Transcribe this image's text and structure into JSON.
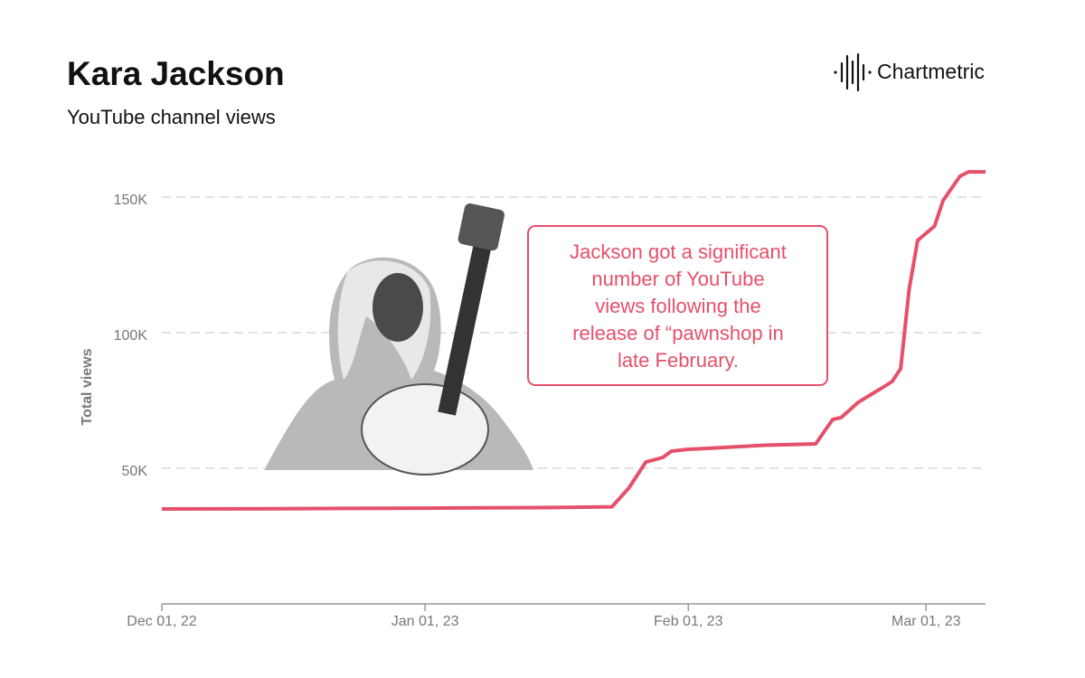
{
  "chart_data": {
    "type": "line",
    "title": "Kara Jackson",
    "subtitle": "YouTube channel views",
    "brand": "Chartmetric",
    "ylabel": "Total views",
    "annotation": [
      "Jackson got a significant",
      "number of YouTube",
      "views following the",
      "release of “pawnshop in",
      "late February."
    ],
    "x": [
      "2022-12-01",
      "2022-12-15",
      "2023-01-01",
      "2023-01-15",
      "2023-01-23",
      "2023-01-25",
      "2023-01-27",
      "2023-01-29",
      "2023-01-30",
      "2023-02-01",
      "2023-02-03",
      "2023-02-10",
      "2023-02-16",
      "2023-02-18",
      "2023-02-19",
      "2023-02-21",
      "2023-02-24",
      "2023-02-25",
      "2023-02-26",
      "2023-02-27",
      "2023-02-28",
      "2023-03-02",
      "2023-03-03",
      "2023-03-05",
      "2023-03-06",
      "2023-03-08"
    ],
    "series": [
      {
        "name": "YouTube channel views",
        "color": "#e5506a",
        "values": [
          35000,
          35100,
          35300,
          35500,
          35800,
          42700,
          52300,
          54000,
          56300,
          57000,
          57300,
          58500,
          59000,
          68000,
          68700,
          74300,
          80000,
          82000,
          86700,
          116000,
          134000,
          139300,
          148700,
          157700,
          159300,
          159300
        ]
      }
    ],
    "xlim": [
      "2022-12-01",
      "2023-03-08"
    ],
    "xticks": [
      {
        "value": "2022-12-01",
        "label": "Dec 01, 22"
      },
      {
        "value": "2023-01-01",
        "label": "Jan 01, 23"
      },
      {
        "value": "2023-02-01",
        "label": "Feb 01, 23"
      },
      {
        "value": "2023-03-01",
        "label": "Mar 01, 23"
      }
    ],
    "ylim": [
      0,
      160000
    ],
    "yticks": [
      {
        "value": 50000,
        "label": "50K"
      },
      {
        "value": 100000,
        "label": "100K"
      },
      {
        "value": 150000,
        "label": "150K"
      }
    ],
    "grid": true
  }
}
